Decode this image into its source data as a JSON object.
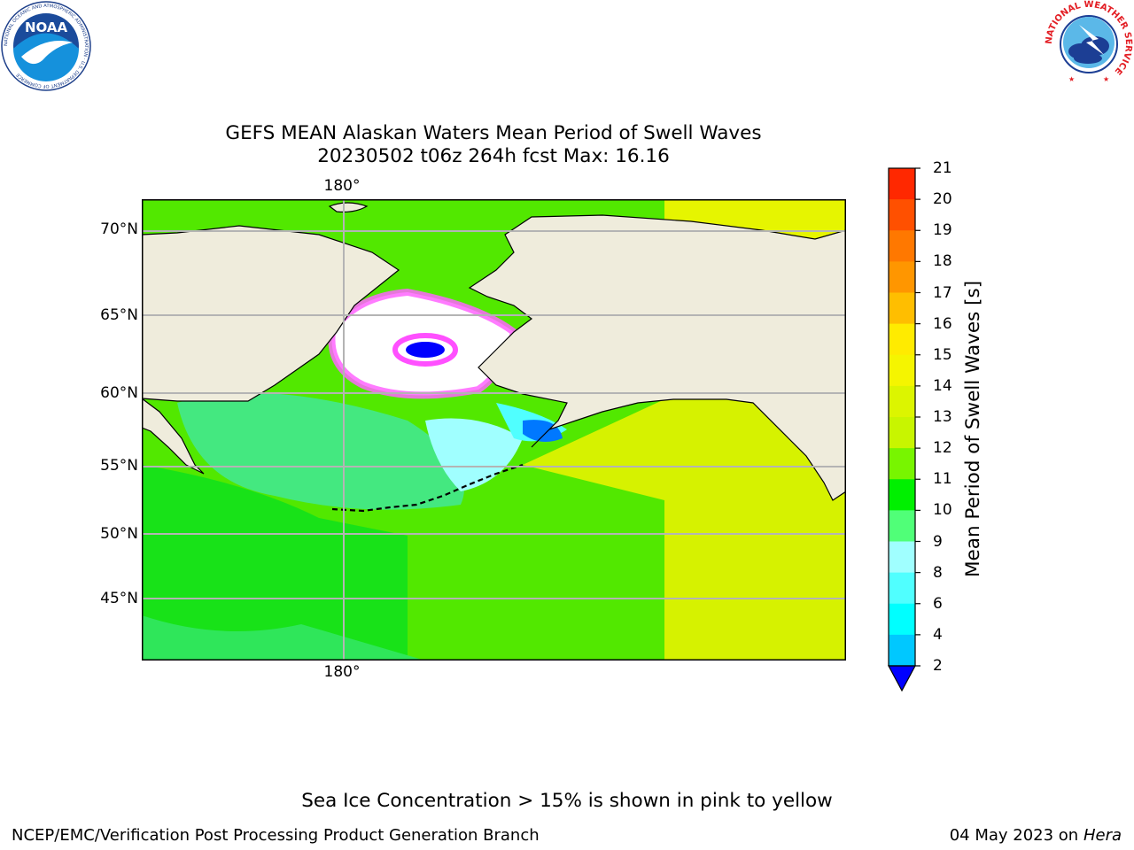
{
  "header": {
    "title_line1": "GEFS MEAN Alaskan Waters Mean Period of Swell Waves",
    "title_line2": "20230502 t06z 264h fcst   Max: 16.16"
  },
  "logos": {
    "left": {
      "text": "NOAA",
      "ring_text": "NATIONAL OCEANIC AND ATMOSPHERIC ADMINISTRATION · U.S. DEPARTMENT OF COMMERCE"
    },
    "right": {
      "ring_text": "NATIONAL WEATHER SERVICE"
    }
  },
  "map": {
    "lat_labels": [
      "70°N",
      "65°N",
      "60°N",
      "55°N",
      "50°N",
      "45°N"
    ],
    "lon_label_top": "180°",
    "lon_label_bottom": "180°",
    "colors": {
      "land": "#efecdc",
      "sea_ice": "#ffffff",
      "coast": "#000000",
      "grid": "#b4b4b4"
    }
  },
  "colorbar": {
    "label": "Mean Period of Swell Waves [s]",
    "ticks": [
      "21",
      "20",
      "19",
      "18",
      "17",
      "16",
      "15",
      "14",
      "13",
      "12",
      "11",
      "10",
      "9",
      "8",
      "6",
      "4",
      "2"
    ],
    "colors": [
      "#ff0000",
      "#ff2800",
      "#ff5000",
      "#ff7800",
      "#ff9600",
      "#ffbe00",
      "#ffeb00",
      "#f5f500",
      "#dcf500",
      "#c8f500",
      "#78f500",
      "#00f000",
      "#50ff78",
      "#a0ffff",
      "#50ffff",
      "#00ffff",
      "#00c8ff",
      "#0078ff",
      "#0000ff"
    ],
    "extend_color": "#0000ff"
  },
  "footer": {
    "note": "Sea Ice Concentration > 15% is shown in pink to yellow",
    "left": "NCEP/EMC/Verification Post Processing Product Generation Branch",
    "right_date": "04 May 2023 on",
    "right_host": "Hera"
  }
}
